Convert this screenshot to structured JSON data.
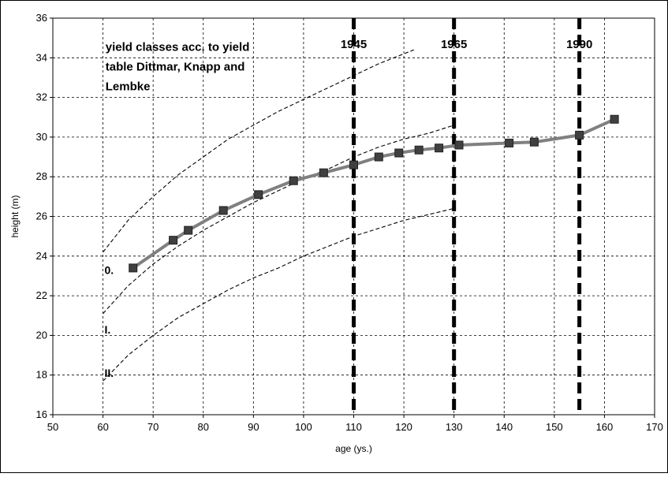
{
  "chart_data": {
    "type": "line",
    "title": "",
    "xlabel": "age (ys.)",
    "ylabel": "height (m)",
    "xlim": [
      50,
      170
    ],
    "ylim": [
      16,
      36
    ],
    "x_ticks": [
      50,
      60,
      70,
      80,
      90,
      100,
      110,
      120,
      130,
      140,
      150,
      160,
      170
    ],
    "y_ticks": [
      16,
      18,
      20,
      22,
      24,
      26,
      28,
      30,
      32,
      34,
      36
    ],
    "grid": true,
    "series": [
      {
        "role": "measured",
        "color": "#808080",
        "marker": "square",
        "marker_color": "#404040",
        "x": [
          66,
          74,
          77,
          84,
          91,
          98,
          104,
          110,
          115,
          119,
          123,
          127,
          131,
          141,
          146,
          155,
          162
        ],
        "y": [
          23.4,
          24.8,
          25.3,
          26.3,
          27.1,
          27.8,
          28.2,
          28.6,
          29.0,
          29.2,
          29.35,
          29.45,
          29.6,
          29.7,
          29.75,
          30.1,
          30.9
        ]
      }
    ],
    "yield_class_curves": [
      {
        "label": "",
        "x": [
          60,
          65,
          70,
          75,
          80,
          85,
          90,
          95,
          100,
          105,
          110,
          115,
          120,
          122
        ],
        "y": [
          24.2,
          25.8,
          27.0,
          28.1,
          29.0,
          29.9,
          30.6,
          31.3,
          31.9,
          32.5,
          33.1,
          33.7,
          34.2,
          34.4
        ]
      },
      {
        "label": "0.",
        "x": [
          60,
          65,
          70,
          75,
          80,
          85,
          90,
          95,
          100,
          105,
          110,
          115,
          120,
          125,
          130
        ],
        "y": [
          21.1,
          22.5,
          23.6,
          24.5,
          25.3,
          26.0,
          26.7,
          27.3,
          27.9,
          28.4,
          29.0,
          29.5,
          29.9,
          30.2,
          30.6
        ]
      },
      {
        "label": "I.",
        "x": [
          60,
          65,
          70,
          75,
          80,
          85,
          90,
          95,
          100,
          105,
          110,
          115,
          120,
          125,
          130
        ],
        "y": [
          17.7,
          19.0,
          20.0,
          20.9,
          21.6,
          22.3,
          22.9,
          23.4,
          24.0,
          24.5,
          25.0,
          25.4,
          25.8,
          26.1,
          26.4
        ]
      }
    ],
    "class_label_extra": "II.",
    "vertical_markers": [
      {
        "x": 110,
        "label": "1945"
      },
      {
        "x": 130,
        "label": "1965"
      },
      {
        "x": 155,
        "label": "1990"
      }
    ],
    "annotation_lines": [
      "yield classes acc. to yield",
      "table Dittmar, Knapp and",
      "Lembke"
    ]
  }
}
